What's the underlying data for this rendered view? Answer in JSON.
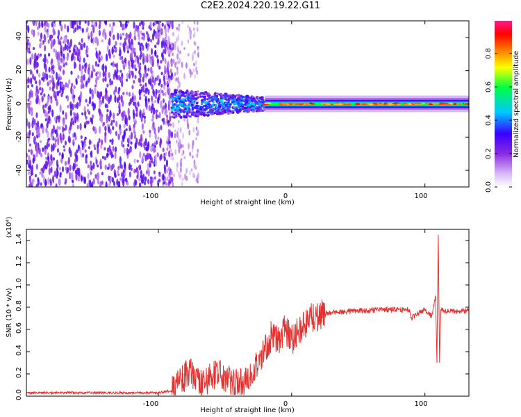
{
  "title": "C2E2.2024.220.19.22.G11",
  "chart_data": [
    {
      "type": "heatmap",
      "xlabel": "Height of straight line (km)",
      "ylabel": "Frequency (Hz)",
      "xlim": [
        -199,
        133
      ],
      "ylim": [
        -50,
        50
      ],
      "x_ticks": [
        "-100",
        "0",
        "100"
      ],
      "y_ticks": [
        "-40",
        "-20",
        "0",
        "20",
        "40"
      ],
      "colorbar": {
        "label": "Normalized spectral amplitude",
        "range": [
          0.0,
          1.0
        ],
        "ticks": [
          "0.0",
          "0.2",
          "0.4",
          "0.6",
          "0.8"
        ],
        "colors": [
          "#ffffff",
          "#d9b8f5",
          "#8a2be2",
          "#3a00ff",
          "#00c8ff",
          "#00ff40",
          "#ffff00",
          "#ff8000",
          "#ff0000",
          "#ff1a8c"
        ]
      },
      "regions": [
        {
          "x": [
            -199,
            -90
          ],
          "freq": [
            -50,
            50
          ],
          "amplitude": 0.25,
          "pattern": "broadband noise"
        },
        {
          "x": [
            -90,
            -20
          ],
          "freq": [
            -8,
            8
          ],
          "amplitude": 0.4,
          "pattern": "narrowing band"
        },
        {
          "x": [
            -20,
            133
          ],
          "freq": [
            -2,
            2
          ],
          "amplitude": 0.75,
          "pattern": "narrow carrier"
        }
      ],
      "grid": false
    },
    {
      "type": "line",
      "xlabel": "Height of straight line (km)",
      "ylabel": "SNR (10 * v/v)",
      "y_multiplier": "(x10⁴)",
      "xlim": [
        -199,
        133
      ],
      "ylim": [
        0,
        1.5
      ],
      "x_ticks": [
        "-100",
        "0",
        "100"
      ],
      "y_ticks": [
        "0.0",
        "0.2",
        "0.4",
        "0.6",
        "0.8",
        "1.0",
        "1.2",
        "1.4"
      ],
      "color": "#e8312f",
      "series": [
        {
          "x": [
            -199,
            -180,
            -160,
            -140,
            -120,
            -100,
            -90,
            -85,
            -80,
            -75,
            -70,
            -65,
            -60,
            -55,
            -50,
            -45,
            -40,
            -35,
            -30,
            -25,
            -20,
            -15,
            -10,
            -5,
            0,
            5,
            10,
            15,
            20,
            25,
            30,
            40,
            50,
            60,
            70,
            80,
            85,
            88,
            90,
            95,
            100,
            105,
            108,
            109,
            110,
            111,
            112,
            115,
            120,
            125,
            133
          ],
          "y": [
            0.03,
            0.03,
            0.03,
            0.03,
            0.03,
            0.03,
            0.05,
            0.12,
            0.18,
            0.2,
            0.15,
            0.12,
            0.18,
            0.2,
            0.18,
            0.13,
            0.1,
            0.15,
            0.22,
            0.3,
            0.4,
            0.55,
            0.5,
            0.62,
            0.5,
            0.6,
            0.65,
            0.7,
            0.72,
            0.74,
            0.75,
            0.76,
            0.77,
            0.77,
            0.78,
            0.78,
            0.77,
            0.78,
            0.7,
            0.75,
            0.78,
            0.72,
            0.9,
            0.3,
            1.45,
            0.3,
            0.78,
            0.76,
            0.77,
            0.76,
            0.77
          ]
        }
      ],
      "grid": false
    }
  ]
}
